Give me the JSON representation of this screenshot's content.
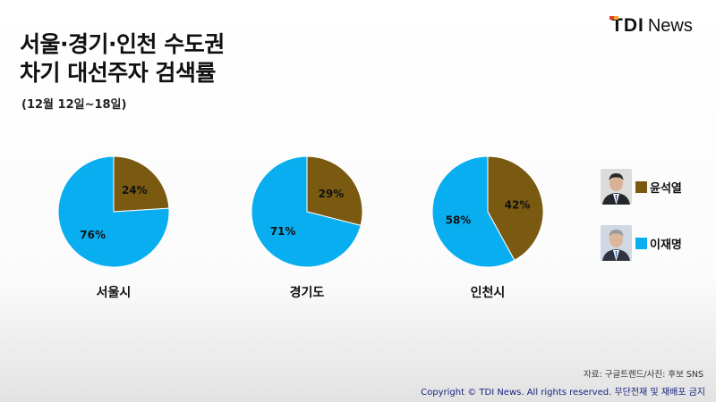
{
  "logo": {
    "brand": "TDI",
    "suffix": "News"
  },
  "header": {
    "title_line1": "서울·경기·인천 수도권",
    "title_line2": "차기 대선주자 검색률",
    "subtitle": "(12월 12일~18일)"
  },
  "colors": {
    "yoon": "#7a5a11",
    "lee": "#09aef0",
    "label": "#111111"
  },
  "chart_data": {
    "type": "pie",
    "series_names": [
      "윤석열",
      "이재명"
    ],
    "charts": [
      {
        "region": "서울시",
        "values": [
          24,
          76
        ],
        "labels": [
          "24%",
          "76%"
        ]
      },
      {
        "region": "경기도",
        "values": [
          29,
          71
        ],
        "labels": [
          "29%",
          "71%"
        ]
      },
      {
        "region": "인천시",
        "values": [
          42,
          58
        ],
        "labels": [
          "42%",
          "58%"
        ]
      }
    ],
    "legend_position": "right"
  },
  "legend": {
    "items": [
      {
        "label": "윤석열",
        "color": "#7a5a11",
        "icon": "portrait-photo-icon"
      },
      {
        "label": "이재명",
        "color": "#09aef0",
        "icon": "portrait-photo-icon"
      }
    ]
  },
  "footer": {
    "source": "자료: 구글트렌드/사진: 후보 SNS",
    "copyright": "Copyright © TDI News. All rights reserved. 무단전재 및 재배포 금지"
  }
}
